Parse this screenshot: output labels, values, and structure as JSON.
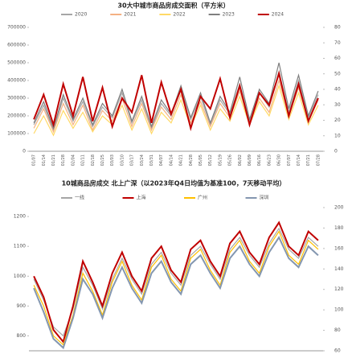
{
  "chart_data": [
    {
      "type": "line",
      "title": "30大中城市商品房成交面积（平方米）",
      "categories": [
        "01/07",
        "01/14",
        "01/21",
        "01/28",
        "02/04",
        "02/11",
        "02/18",
        "02/25",
        "03/03",
        "03/10",
        "03/17",
        "03/24",
        "03/31",
        "04/07",
        "04/14",
        "04/21",
        "04/28",
        "05/05",
        "05/12",
        "05/19",
        "05/26",
        "06/02",
        "06/09",
        "06/16",
        "06/23",
        "06/30",
        "07/07",
        "07/14",
        "07/21",
        "07/28"
      ],
      "series": [
        {
          "name": "2020",
          "color": "#a6a6a6",
          "values": [
            150000,
            260000,
            120000,
            300000,
            170000,
            280000,
            140000,
            250000,
            190000,
            330000,
            160000,
            290000,
            130000,
            270000,
            200000,
            350000,
            180000,
            310000,
            150000,
            290000,
            210000,
            380000,
            170000,
            330000,
            250000,
            450000,
            220000,
            400000,
            190000,
            320000
          ]
        },
        {
          "name": "2021",
          "color": "#f4b183",
          "values": [
            130000,
            240000,
            110000,
            270000,
            150000,
            260000,
            120000,
            230000,
            170000,
            300000,
            140000,
            270000,
            120000,
            250000,
            180000,
            320000,
            160000,
            280000,
            140000,
            270000,
            190000,
            340000,
            160000,
            300000,
            220000,
            400000,
            200000,
            360000,
            170000,
            290000
          ]
        },
        {
          "name": "2022",
          "color": "#ffd966",
          "values": [
            100000,
            200000,
            90000,
            230000,
            130000,
            220000,
            110000,
            200000,
            150000,
            260000,
            120000,
            240000,
            100000,
            220000,
            160000,
            290000,
            140000,
            260000,
            120000,
            240000,
            170000,
            310000,
            150000,
            280000,
            200000,
            370000,
            180000,
            330000,
            150000,
            260000
          ]
        },
        {
          "name": "2023",
          "color": "#7f7f7f",
          "values": [
            160000,
            280000,
            130000,
            320000,
            180000,
            300000,
            150000,
            270000,
            200000,
            350000,
            170000,
            310000,
            140000,
            290000,
            210000,
            370000,
            190000,
            330000,
            160000,
            310000,
            220000,
            420000,
            180000,
            350000,
            270000,
            500000,
            240000,
            430000,
            200000,
            340000
          ]
        },
        {
          "name": "2024",
          "color": "#c00000",
          "values": [
            180000,
            320000,
            150000,
            380000,
            200000,
            420000,
            170000,
            360000,
            140000,
            300000,
            220000,
            430000,
            160000,
            390000,
            210000,
            350000,
            130000,
            310000,
            240000,
            410000,
            190000,
            370000,
            150000,
            330000,
            260000,
            440000,
            200000,
            380000,
            170000,
            300000
          ]
        }
      ],
      "ylim": [
        0,
        700000
      ],
      "yticks": [
        0,
        100000,
        200000,
        300000,
        400000,
        500000,
        600000,
        700000
      ],
      "y2lim": [
        0,
        80
      ],
      "y2ticks": [
        0,
        10,
        20,
        30,
        40,
        50,
        60,
        70,
        80
      ]
    },
    {
      "type": "line",
      "title": "10城商品房成交 北上广深（以2023年Q4日均值为基准100，7天移动平均）",
      "categories": [
        null,
        null,
        null,
        null,
        null,
        null,
        null,
        null,
        null,
        null,
        null,
        null,
        null,
        null,
        null,
        null,
        null,
        null,
        null,
        null,
        null,
        null,
        null,
        null,
        null,
        null,
        null,
        null,
        null,
        null
      ],
      "series": [
        {
          "name": "一线",
          "color": "#a6a6a6",
          "values": [
            990,
            920,
            830,
            800,
            890,
            1030,
            970,
            890,
            990,
            1060,
            990,
            940,
            1040,
            1080,
            1010,
            970,
            1070,
            1100,
            1040,
            990,
            1090,
            1130,
            1070,
            1030,
            1110,
            1160,
            1090,
            1060,
            1130,
            1100
          ]
        },
        {
          "name": "上海",
          "color": "#c00000",
          "values": [
            1000,
            930,
            820,
            780,
            900,
            1050,
            980,
            900,
            1010,
            1080,
            1000,
            950,
            1060,
            1100,
            1020,
            980,
            1090,
            1120,
            1050,
            1000,
            1110,
            1150,
            1080,
            1040,
            1130,
            1180,
            1100,
            1070,
            1150,
            1120
          ]
        },
        {
          "name": "广州",
          "color": "#ffc000",
          "values": [
            970,
            900,
            800,
            770,
            870,
            1010,
            950,
            870,
            980,
            1050,
            970,
            920,
            1030,
            1070,
            990,
            950,
            1060,
            1090,
            1020,
            970,
            1080,
            1120,
            1050,
            1010,
            1100,
            1150,
            1070,
            1040,
            1120,
            1090
          ]
        },
        {
          "name": "深圳",
          "color": "#8497b0",
          "values": [
            960,
            880,
            790,
            760,
            860,
            990,
            940,
            860,
            960,
            1030,
            960,
            910,
            1010,
            1050,
            980,
            940,
            1040,
            1070,
            1010,
            960,
            1060,
            1100,
            1040,
            1000,
            1080,
            1130,
            1060,
            1030,
            1100,
            1070
          ]
        }
      ],
      "ylim": [
        750,
        1230
      ],
      "yticks": [
        800,
        900,
        1000,
        1100,
        1200
      ],
      "y2lim": [
        60,
        200
      ],
      "y2ticks": [
        60,
        80,
        100,
        120,
        140,
        160,
        180,
        200
      ]
    }
  ]
}
